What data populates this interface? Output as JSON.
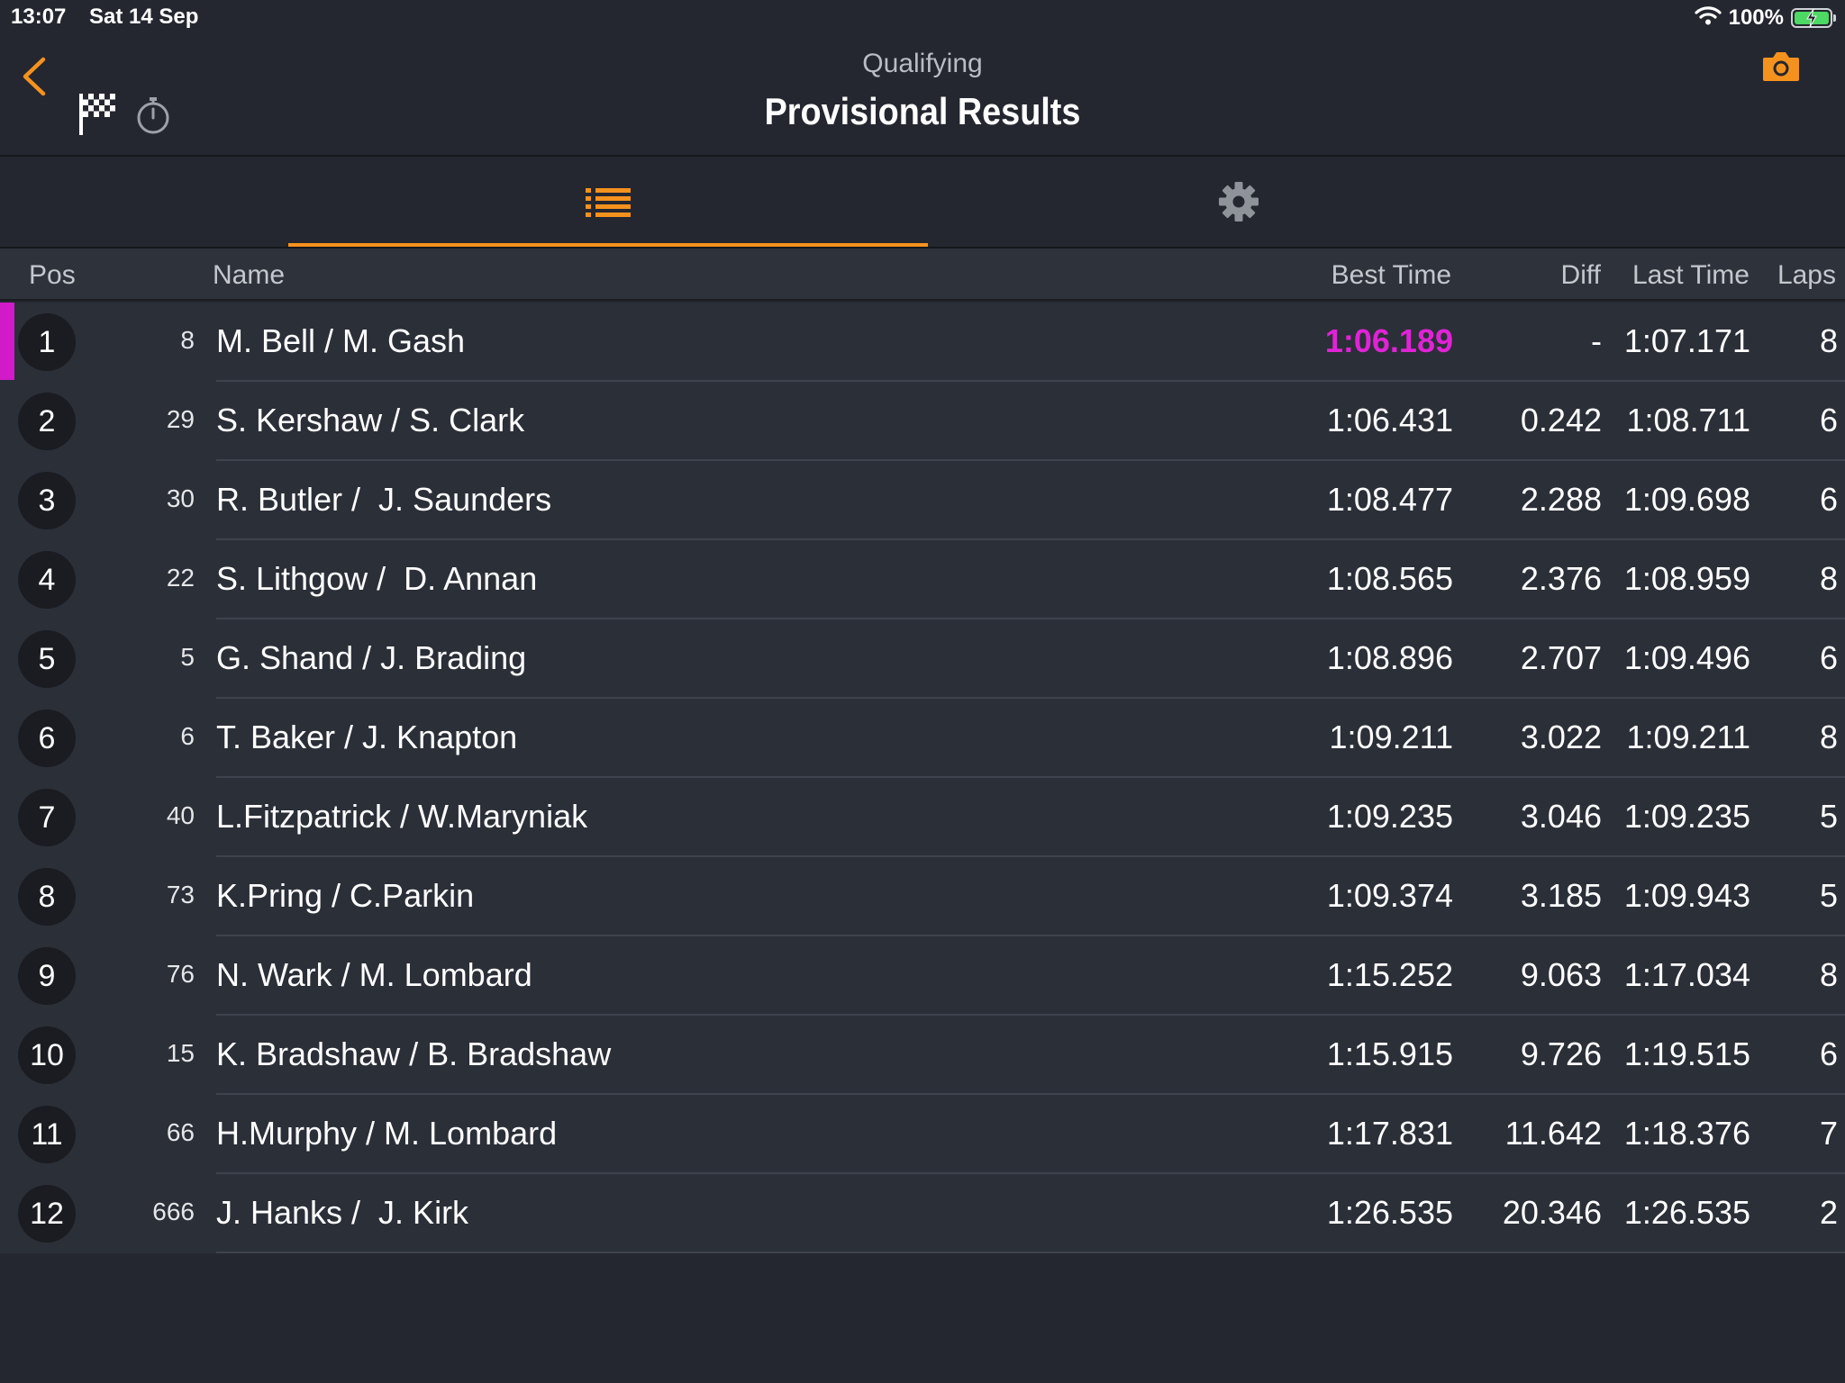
{
  "status_bar": {
    "time": "13:07",
    "date": "Sat 14 Sep",
    "battery": "100%",
    "battery_level": 1.0,
    "wifi_icon": "wifi-icon",
    "battery_icon": "battery-charging-icon"
  },
  "header": {
    "subtitle": "Qualifying",
    "title": "Provisional Results",
    "back_icon": "chevron-left-icon",
    "flag_icon": "checkered-flag-icon",
    "stopwatch_icon": "stopwatch-icon",
    "camera_icon": "camera-icon"
  },
  "tabs": [
    {
      "icon": "list-icon",
      "active": true
    },
    {
      "icon": "gear-icon",
      "active": false
    }
  ],
  "colors": {
    "accent": "#f5921e",
    "fastest": "#e023d6",
    "background": "#24272f",
    "row_background": "#2b2f38"
  },
  "table": {
    "columns": [
      "Pos",
      "Name",
      "Best Time",
      "Diff",
      "Last Time",
      "Laps"
    ],
    "rows": [
      {
        "pos": "1",
        "num": "8",
        "name": "M. Bell / M. Gash",
        "best": "1:06.189",
        "diff": "-",
        "last": "1:07.171",
        "laps": "8",
        "fastest": true
      },
      {
        "pos": "2",
        "num": "29",
        "name": "S. Kershaw / S. Clark",
        "best": "1:06.431",
        "diff": "0.242",
        "last": "1:08.711",
        "laps": "6"
      },
      {
        "pos": "3",
        "num": "30",
        "name": "R. Butler /  J. Saunders",
        "best": "1:08.477",
        "diff": "2.288",
        "last": "1:09.698",
        "laps": "6"
      },
      {
        "pos": "4",
        "num": "22",
        "name": "S. Lithgow /  D. Annan",
        "best": "1:08.565",
        "diff": "2.376",
        "last": "1:08.959",
        "laps": "8"
      },
      {
        "pos": "5",
        "num": "5",
        "name": "G. Shand / J. Brading",
        "best": "1:08.896",
        "diff": "2.707",
        "last": "1:09.496",
        "laps": "6"
      },
      {
        "pos": "6",
        "num": "6",
        "name": "T. Baker / J. Knapton",
        "best": "1:09.211",
        "diff": "3.022",
        "last": "1:09.211",
        "laps": "8"
      },
      {
        "pos": "7",
        "num": "40",
        "name": "L.Fitzpatrick / W.Maryniak",
        "best": "1:09.235",
        "diff": "3.046",
        "last": "1:09.235",
        "laps": "5"
      },
      {
        "pos": "8",
        "num": "73",
        "name": "K.Pring / C.Parkin",
        "best": "1:09.374",
        "diff": "3.185",
        "last": "1:09.943",
        "laps": "5"
      },
      {
        "pos": "9",
        "num": "76",
        "name": "N. Wark / M. Lombard",
        "best": "1:15.252",
        "diff": "9.063",
        "last": "1:17.034",
        "laps": "8"
      },
      {
        "pos": "10",
        "num": "15",
        "name": "K. Bradshaw / B. Bradshaw",
        "best": "1:15.915",
        "diff": "9.726",
        "last": "1:19.515",
        "laps": "6"
      },
      {
        "pos": "11",
        "num": "66",
        "name": "H.Murphy / M. Lombard",
        "best": "1:17.831",
        "diff": "11.642",
        "last": "1:18.376",
        "laps": "7"
      },
      {
        "pos": "12",
        "num": "666",
        "name": "J. Hanks /  J. Kirk",
        "best": "1:26.535",
        "diff": "20.346",
        "last": "1:26.535",
        "laps": "2"
      }
    ]
  }
}
